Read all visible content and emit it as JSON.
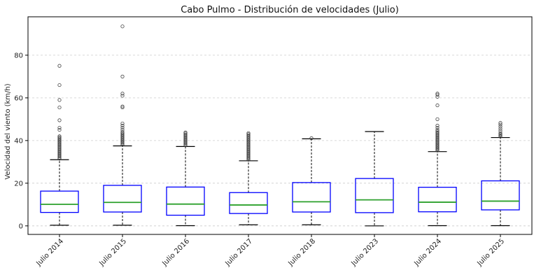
{
  "chart_data": {
    "type": "box",
    "title": "Cabo Pulmo - Distribución de velocidades (Julio)",
    "xlabel": "",
    "ylabel": "Velocidad del viento (km/h)",
    "ylim": [
      -4,
      98
    ],
    "yticks": [
      0,
      20,
      40,
      60,
      80
    ],
    "grid": "horizontal-dashed",
    "colors": {
      "box": "#0000ff",
      "median": "#2ca02c",
      "whisker": "#000000",
      "flier": "#444444"
    },
    "categories": [
      "Julio 2014",
      "Julio 2015",
      "Julio 2016",
      "Julio 2017",
      "Julio 2018",
      "Julio 2023",
      "Julio 2024",
      "Julio 2025"
    ],
    "boxes": [
      {
        "label": "Julio 2014",
        "whisker_low": 0.3,
        "q1": 6.3,
        "median": 10.1,
        "q3": 16.3,
        "whisker_high": 31.0,
        "outliers": [
          31.5,
          32,
          32.5,
          33,
          33.5,
          34,
          34.5,
          35,
          35.5,
          36,
          36.5,
          37,
          37.5,
          38,
          38.5,
          39,
          39.5,
          40,
          40.5,
          41,
          41.5,
          42,
          45,
          46,
          49.5,
          55.5,
          59,
          66,
          75
        ]
      },
      {
        "label": "Julio 2015",
        "whisker_low": 0.3,
        "q1": 6.5,
        "median": 11.0,
        "q3": 19.0,
        "whisker_high": 37.5,
        "outliers": [
          38,
          38.5,
          39,
          39.5,
          40,
          40.5,
          41,
          41.5,
          42,
          42.5,
          43,
          43.5,
          44,
          45,
          46,
          47,
          48,
          55.5,
          56,
          61,
          62,
          70,
          93.5
        ]
      },
      {
        "label": "Julio 2016",
        "whisker_low": 0.1,
        "q1": 5.0,
        "median": 10.2,
        "q3": 18.2,
        "whisker_high": 37.2,
        "outliers": [
          37.8,
          38.3,
          38.8,
          39.3,
          39.8,
          40.3,
          40.8,
          41.3,
          41.8,
          42.3,
          42.8,
          43.3,
          43.8
        ]
      },
      {
        "label": "Julio 2017",
        "whisker_low": 0.5,
        "q1": 5.8,
        "median": 9.8,
        "q3": 15.6,
        "whisker_high": 30.5,
        "outliers": [
          31,
          31.5,
          32,
          32.5,
          33,
          33.5,
          34,
          34.5,
          35,
          35.5,
          36,
          36.5,
          37,
          37.5,
          38,
          38.5,
          39,
          39.5,
          40,
          40.5,
          41,
          41.5,
          42,
          42.5,
          43,
          43.5
        ]
      },
      {
        "label": "Julio 2018",
        "whisker_low": 0.5,
        "q1": 6.5,
        "median": 11.3,
        "q3": 20.3,
        "whisker_high": 40.8,
        "outliers": [
          41.1
        ]
      },
      {
        "label": "Julio 2023",
        "whisker_low": 0.0,
        "q1": 6.2,
        "median": 12.2,
        "q3": 22.2,
        "whisker_high": 44.2,
        "outliers": []
      },
      {
        "label": "Julio 2024",
        "whisker_low": 0.1,
        "q1": 6.6,
        "median": 11.1,
        "q3": 18.1,
        "whisker_high": 34.8,
        "outliers": [
          35.3,
          35.8,
          36.3,
          36.8,
          37.3,
          37.8,
          38.3,
          38.8,
          39.3,
          39.8,
          40.3,
          40.8,
          41.3,
          41.8,
          42.3,
          42.8,
          43.3,
          43.8,
          44.3,
          45,
          46,
          47,
          50,
          56.5,
          60.5,
          61.5,
          62
        ]
      },
      {
        "label": "Julio 2025",
        "whisker_low": 0.1,
        "q1": 7.5,
        "median": 11.6,
        "q3": 21.1,
        "whisker_high": 41.4,
        "outliers": [
          41.9,
          42.4,
          42.9,
          43.5,
          44.5,
          45.5,
          46.5,
          47.5,
          48.3
        ]
      }
    ]
  }
}
